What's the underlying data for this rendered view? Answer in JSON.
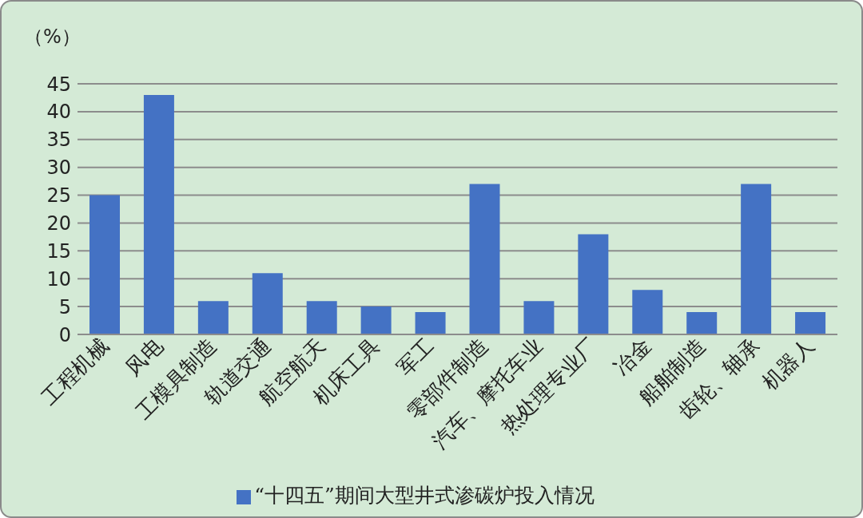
{
  "chart_data": {
    "type": "bar",
    "ylabel": "（%）",
    "categories": [
      "工程机械",
      "风电",
      "工模具制造",
      "轨道交通",
      "航空航天",
      "机床工具",
      "军工",
      "零部件制造",
      "汽车、摩托车业",
      "热处理专业厂",
      "冶金",
      "船舶制造",
      "齿轮、轴承",
      "机器人"
    ],
    "series": [
      {
        "name": "“十四五”期间大型井式渗碳炉投入情况",
        "color": "#4472c4",
        "values": [
          25,
          43,
          6,
          11,
          6,
          5,
          4,
          27,
          6,
          18,
          8,
          4,
          27,
          4
        ]
      }
    ],
    "ylim": [
      0,
      45
    ],
    "yticks": [
      0,
      5,
      10,
      15,
      20,
      25,
      30,
      35,
      40,
      45
    ],
    "grid": "y",
    "legend": "bottom"
  }
}
